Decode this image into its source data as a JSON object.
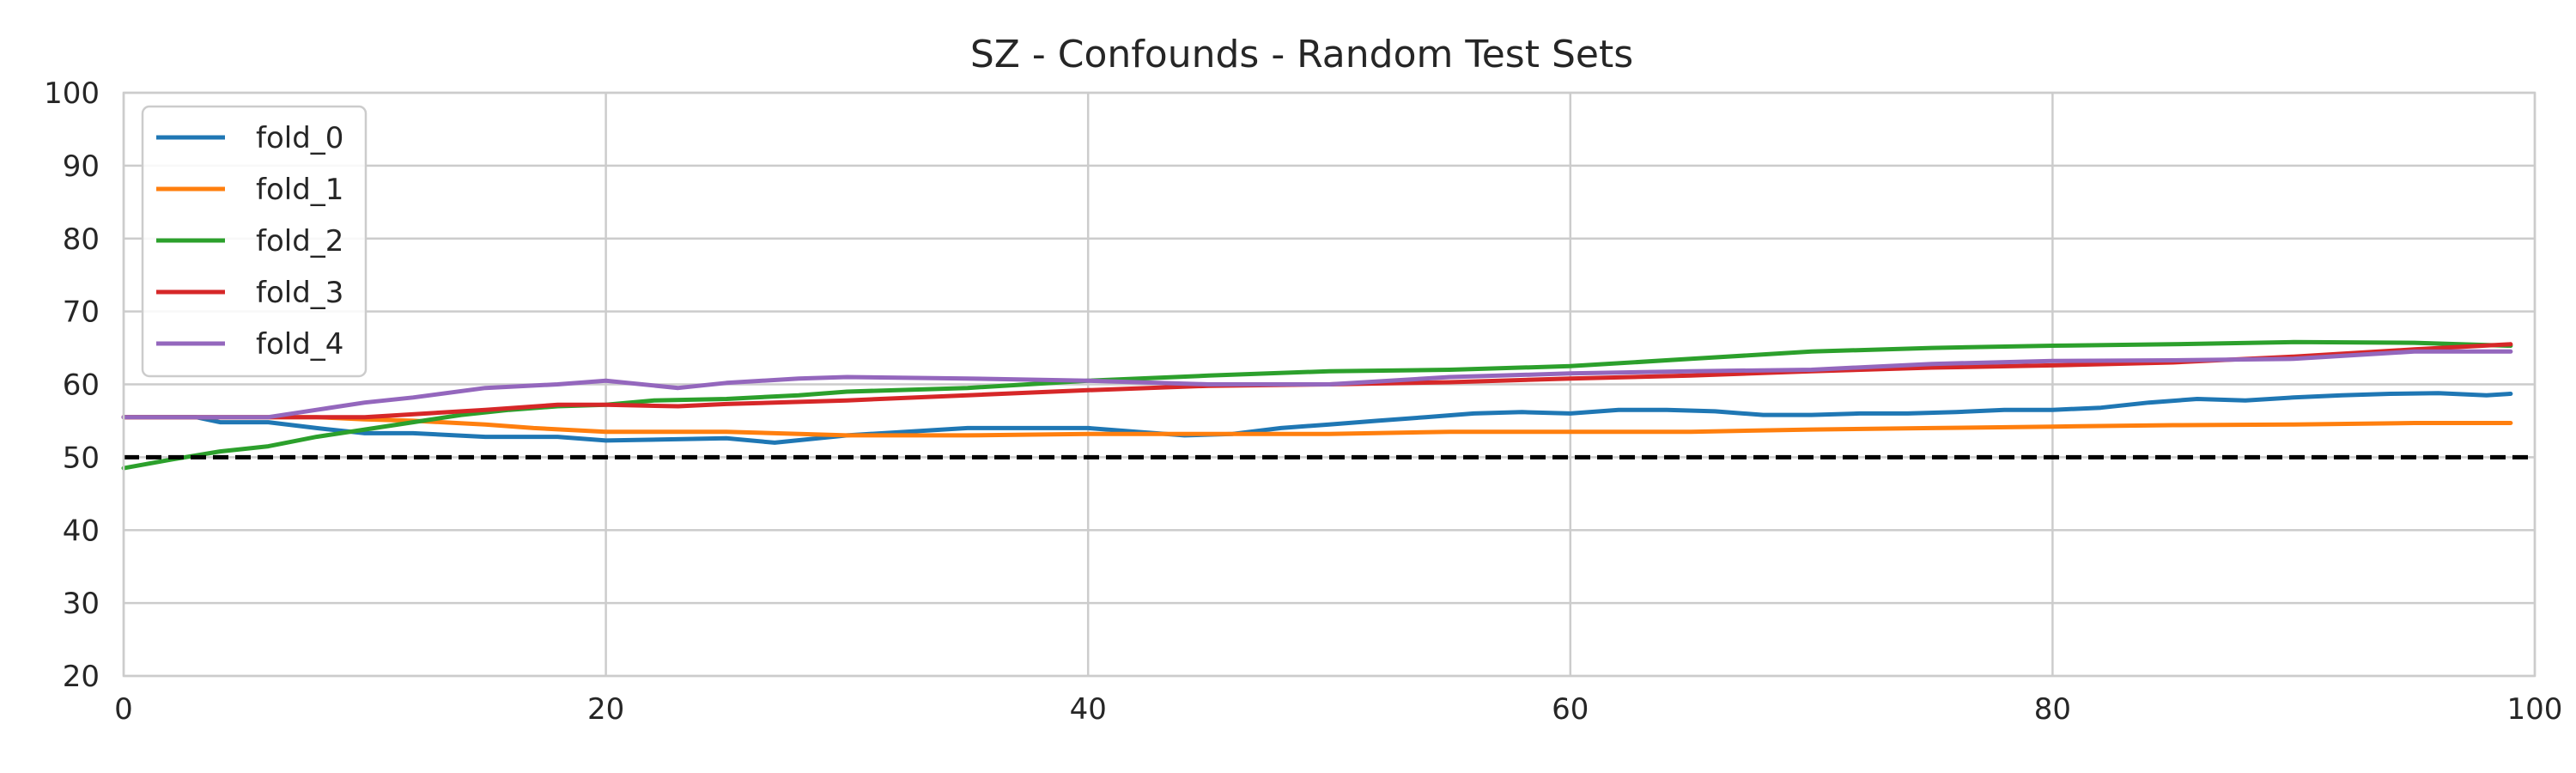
{
  "chart_data": {
    "type": "line",
    "title": "SZ - Confounds - Random Test Sets",
    "xlabel": "",
    "ylabel": "",
    "xlim": [
      0,
      100
    ],
    "ylim": [
      20,
      100
    ],
    "x_ticks": [
      0,
      20,
      40,
      60,
      80,
      100
    ],
    "y_ticks": [
      20,
      30,
      40,
      50,
      60,
      70,
      80,
      90,
      100
    ],
    "grid": true,
    "legend_position": "top-left",
    "reference_line": {
      "y": 50,
      "style": "dashed",
      "color": "#000000"
    },
    "series": [
      {
        "name": "fold_0",
        "color": "#1f77b4",
        "x": [
          0,
          3,
          4,
          6,
          8,
          10,
          12,
          15,
          18,
          20,
          25,
          27,
          30,
          35,
          40,
          42,
          44,
          46,
          48,
          50,
          52,
          54,
          56,
          58,
          60,
          62,
          64,
          66,
          68,
          70,
          72,
          74,
          76,
          78,
          80,
          82,
          84,
          86,
          88,
          90,
          92,
          94,
          96,
          98,
          99
        ],
        "y": [
          55.5,
          55.5,
          54.8,
          54.8,
          54.0,
          53.3,
          53.3,
          52.8,
          52.8,
          52.3,
          52.6,
          52.0,
          53.0,
          54.0,
          54.0,
          53.5,
          53.0,
          53.2,
          54.0,
          54.5,
          55.0,
          55.5,
          56.0,
          56.2,
          56.0,
          56.5,
          56.5,
          56.3,
          55.8,
          55.8,
          56.0,
          56.0,
          56.2,
          56.5,
          56.5,
          56.8,
          57.5,
          58.0,
          57.8,
          58.2,
          58.5,
          58.7,
          58.8,
          58.5,
          58.7
        ]
      },
      {
        "name": "fold_1",
        "color": "#ff7f0e",
        "x": [
          0,
          5,
          8,
          10,
          12,
          15,
          17,
          20,
          25,
          30,
          35,
          40,
          45,
          50,
          55,
          60,
          65,
          70,
          75,
          80,
          85,
          90,
          95,
          99
        ],
        "y": [
          55.5,
          55.5,
          55.5,
          55.2,
          55.0,
          54.5,
          54.0,
          53.5,
          53.5,
          53.0,
          53.0,
          53.2,
          53.2,
          53.2,
          53.5,
          53.5,
          53.5,
          53.8,
          54.0,
          54.2,
          54.4,
          54.5,
          54.7,
          54.7
        ]
      },
      {
        "name": "fold_2",
        "color": "#2ca02c",
        "x": [
          0,
          2,
          4,
          6,
          8,
          10,
          12,
          14,
          16,
          18,
          20,
          22,
          25,
          28,
          30,
          35,
          40,
          45,
          50,
          55,
          60,
          65,
          70,
          75,
          80,
          85,
          90,
          95,
          99
        ],
        "y": [
          48.5,
          49.7,
          50.8,
          51.5,
          52.8,
          53.8,
          54.8,
          55.8,
          56.5,
          57.0,
          57.2,
          57.8,
          58.0,
          58.5,
          59.0,
          59.5,
          60.5,
          61.2,
          61.8,
          62.0,
          62.5,
          63.5,
          64.5,
          65.0,
          65.3,
          65.5,
          65.8,
          65.7,
          65.3
        ]
      },
      {
        "name": "fold_3",
        "color": "#d62728",
        "x": [
          0,
          5,
          10,
          15,
          18,
          20,
          23,
          25,
          30,
          35,
          40,
          45,
          50,
          55,
          60,
          65,
          70,
          75,
          80,
          85,
          90,
          95,
          99
        ],
        "y": [
          55.5,
          55.5,
          55.5,
          56.5,
          57.2,
          57.2,
          57.0,
          57.3,
          57.8,
          58.5,
          59.2,
          59.8,
          60.0,
          60.3,
          60.8,
          61.2,
          61.8,
          62.3,
          62.6,
          63.0,
          63.8,
          64.8,
          65.5
        ]
      },
      {
        "name": "fold_4",
        "color": "#9467bd",
        "x": [
          0,
          6,
          8,
          10,
          12,
          15,
          18,
          20,
          23,
          25,
          28,
          30,
          35,
          40,
          45,
          50,
          55,
          60,
          65,
          70,
          75,
          80,
          85,
          90,
          95,
          98,
          99
        ],
        "y": [
          55.5,
          55.5,
          56.5,
          57.5,
          58.2,
          59.5,
          60.0,
          60.5,
          59.5,
          60.2,
          60.8,
          61.0,
          60.8,
          60.5,
          60.0,
          60.0,
          61.0,
          61.5,
          61.8,
          62.0,
          62.8,
          63.2,
          63.3,
          63.5,
          64.5,
          64.5,
          64.5
        ]
      }
    ]
  }
}
